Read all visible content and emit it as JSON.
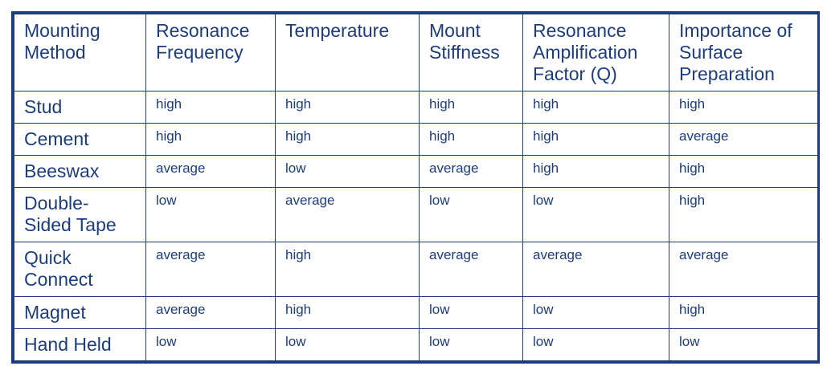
{
  "table": {
    "headers": [
      "Mounting\nMethod",
      "Resonance\nFrequency",
      "Temperature",
      "Mount\nStiffness",
      "Resonance\nAmplification\nFactor (Q)",
      "Importance of\nSurface\nPreparation"
    ],
    "rows": [
      {
        "method": "Stud",
        "values": [
          "high",
          "high",
          "high",
          "high",
          "high"
        ]
      },
      {
        "method": "Cement",
        "values": [
          "high",
          "high",
          "high",
          "high",
          "average"
        ]
      },
      {
        "method": "Beeswax",
        "values": [
          "average",
          "low",
          "average",
          "high",
          "high"
        ]
      },
      {
        "method": "Double-\nSided Tape",
        "values": [
          "low",
          "average",
          "low",
          "low",
          "high"
        ]
      },
      {
        "method": "Quick\nConnect",
        "values": [
          "average",
          "high",
          "average",
          "average",
          "average"
        ]
      },
      {
        "method": "Magnet",
        "values": [
          "average",
          "high",
          "low",
          "low",
          "high"
        ]
      },
      {
        "method": "Hand Held",
        "values": [
          "low",
          "low",
          "low",
          "low",
          "low"
        ]
      }
    ]
  },
  "colors": {
    "border": "#1c3c7c",
    "text": "#1c3c7c"
  }
}
